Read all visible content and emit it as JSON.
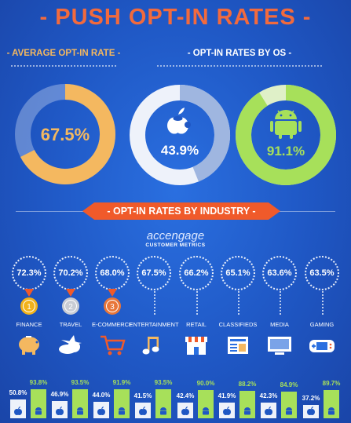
{
  "title": "- PUSH OPT-IN RATES -",
  "average_heading": "- AVERAGE OPT-IN RATE -",
  "os_heading": "- OPT-IN RATES BY OS -",
  "industry_heading": "- OPT-IN RATES BY INDUSTRY -",
  "brand": "accengage",
  "brand_sub": "CUSTOMER METRICS",
  "colors": {
    "orange": "#f05a2a",
    "gold": "#f4b860",
    "ios": "#eef2fa",
    "android": "#a7e05a"
  },
  "chart_data": [
    {
      "type": "pie",
      "values": [
        67.5
      ],
      "labels": [
        "67.5%"
      ],
      "color": "#f4b860"
    },
    {
      "type": "pie",
      "series": [
        {
          "icon": "apple-icon",
          "values": [
            43.9
          ],
          "labels": [
            "43.9%"
          ]
        },
        {
          "icon": "android-icon",
          "values": [
            91.1
          ],
          "labels": [
            "91.1%"
          ]
        }
      ]
    },
    {
      "type": "bar",
      "categories": [
        "FINANCE",
        "TRAVEL",
        "E-COMMERCE",
        "ENTERTAINMENT",
        "RETAIL",
        "CLASSIFIEDS",
        "MEDIA",
        "GAMING"
      ],
      "rates": [
        "72.3%",
        "70.2%",
        "68.0%",
        "67.5%",
        "66.2%",
        "65.1%",
        "63.6%",
        "63.5%"
      ],
      "medals": [
        "1",
        "2",
        "3"
      ],
      "icons": [
        "piggy-bank-icon",
        "airplane-cloud-icon",
        "shopping-cart-icon",
        "music-note-icon",
        "storefront-icon",
        "newspaper-icon",
        "tv-monitor-icon",
        "game-controller-icon"
      ],
      "series": [
        {
          "icon": "apple-icon",
          "values": [
            50.8,
            46.9,
            44.0,
            41.5,
            42.4,
            41.9,
            42.3,
            37.2
          ],
          "labels": [
            "50.8%",
            "46.9%",
            "44.0%",
            "41.5%",
            "42.4%",
            "41.9%",
            "42.3%",
            "37.2%"
          ]
        },
        {
          "icon": "android-icon",
          "values": [
            93.8,
            93.5,
            91.9,
            93.5,
            90.0,
            88.2,
            84.9,
            89.7
          ],
          "labels": [
            "93.8%",
            "93.5%",
            "91.9%",
            "93.5%",
            "90.0%",
            "88.2%",
            "84.9%",
            "89.7%"
          ]
        }
      ]
    }
  ]
}
